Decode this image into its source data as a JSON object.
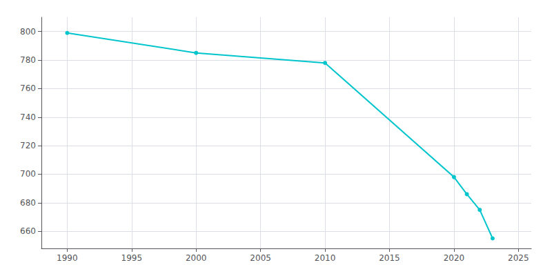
{
  "chart_data": {
    "type": "line",
    "x": [
      1990,
      2000,
      2010,
      2020,
      2021,
      2022,
      2023
    ],
    "values": [
      799,
      785,
      778,
      698,
      686,
      675,
      655
    ],
    "color": "#00C5CD",
    "marker": "circle",
    "xlim": [
      1988,
      2026
    ],
    "ylim": [
      648,
      810
    ],
    "xticks": [
      1990,
      1995,
      2000,
      2005,
      2010,
      2015,
      2020,
      2025
    ],
    "yticks": [
      660,
      680,
      700,
      720,
      740,
      760,
      780,
      800
    ],
    "grid": true
  }
}
